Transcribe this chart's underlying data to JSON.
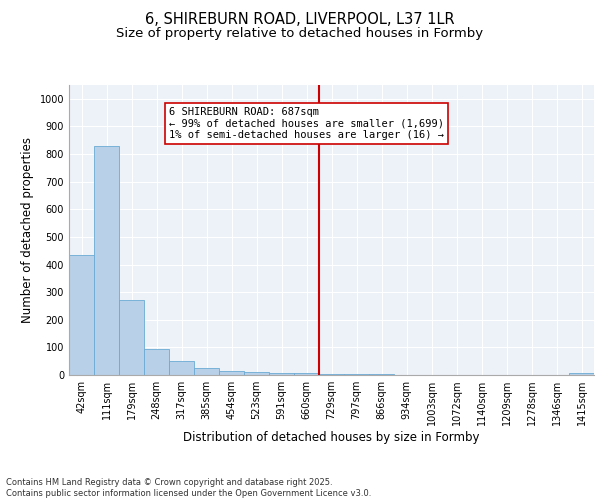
{
  "title_line1": "6, SHIREBURN ROAD, LIVERPOOL, L37 1LR",
  "title_line2": "Size of property relative to detached houses in Formby",
  "xlabel": "Distribution of detached houses by size in Formby",
  "ylabel": "Number of detached properties",
  "categories": [
    "42sqm",
    "111sqm",
    "179sqm",
    "248sqm",
    "317sqm",
    "385sqm",
    "454sqm",
    "523sqm",
    "591sqm",
    "660sqm",
    "729sqm",
    "797sqm",
    "866sqm",
    "934sqm",
    "1003sqm",
    "1072sqm",
    "1140sqm",
    "1209sqm",
    "1278sqm",
    "1346sqm",
    "1415sqm"
  ],
  "values": [
    435,
    830,
    270,
    95,
    50,
    25,
    15,
    10,
    8,
    8,
    5,
    3,
    3,
    0,
    0,
    0,
    0,
    0,
    0,
    0,
    8
  ],
  "bar_color": "#b8d0e8",
  "bar_edge_color": "#6aaad4",
  "vline_color": "#cc0000",
  "annotation_text": "6 SHIREBURN ROAD: 687sqm\n← 99% of detached houses are smaller (1,699)\n1% of semi-detached houses are larger (16) →",
  "ylim": [
    0,
    1050
  ],
  "yticks": [
    0,
    100,
    200,
    300,
    400,
    500,
    600,
    700,
    800,
    900,
    1000
  ],
  "background_color": "#edf1f8",
  "footer_text": "Contains HM Land Registry data © Crown copyright and database right 2025.\nContains public sector information licensed under the Open Government Licence v3.0.",
  "title_fontsize": 10.5,
  "subtitle_fontsize": 9.5,
  "axis_label_fontsize": 8.5,
  "tick_fontsize": 7,
  "annot_fontsize": 7.5,
  "footer_fontsize": 6
}
